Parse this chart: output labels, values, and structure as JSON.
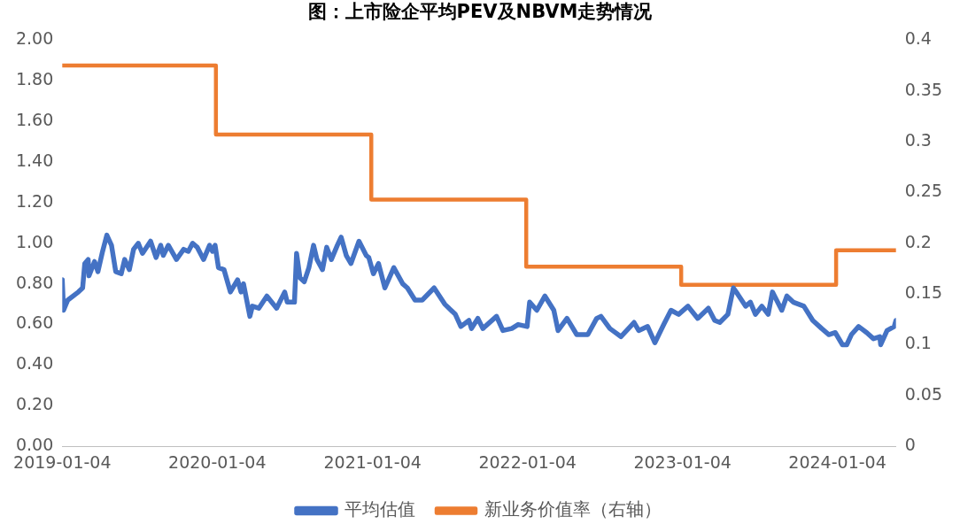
{
  "chart_data": {
    "type": "line",
    "title": "图：上市险企平均PEV及NBVM走势情况",
    "xlim": [
      "2019-01-04",
      "2024-05-21"
    ],
    "xticks": [
      "2019-01-04",
      "2020-01-04",
      "2021-01-04",
      "2022-01-04",
      "2023-01-04",
      "2024-01-04"
    ],
    "ylim": [
      0,
      2
    ],
    "yticks": [
      {
        "value": 0,
        "label": "0.00"
      },
      {
        "value": 0.2,
        "label": "0.20"
      },
      {
        "value": 0.4,
        "label": "0.40"
      },
      {
        "value": 0.6,
        "label": "0.60"
      },
      {
        "value": 0.8,
        "label": "0.80"
      },
      {
        "value": 1,
        "label": "1.00"
      },
      {
        "value": 1.2,
        "label": "1.20"
      },
      {
        "value": 1.4,
        "label": "1.40"
      },
      {
        "value": 1.6,
        "label": "1.60"
      },
      {
        "value": 1.8,
        "label": "1.80"
      },
      {
        "value": 2,
        "label": "2.00"
      }
    ],
    "y2lim": [
      0,
      0.4
    ],
    "y2ticks": [
      0,
      0.05,
      0.1,
      0.15,
      0.2,
      0.25,
      0.3,
      0.35,
      0.4
    ],
    "grid": false,
    "legend": "bottom",
    "marker": "none",
    "series": [
      {
        "name": "平均估值",
        "type": "line",
        "color": "#4472c4",
        "x": [
          "2019-01-04",
          "2019-01-07",
          "2019-01-17",
          "2019-02-11",
          "2019-02-21",
          "2019-02-26",
          "2019-03-06",
          "2019-03-08",
          "2019-03-21",
          "2019-03-29",
          "2019-04-09",
          "2019-04-19",
          "2019-04-30",
          "2019-05-10",
          "2019-05-23",
          "2019-05-31",
          "2019-06-11",
          "2019-06-21",
          "2019-07-02",
          "2019-07-12",
          "2019-07-31",
          "2019-08-13",
          "2019-08-24",
          "2019-08-30",
          "2019-09-11",
          "2019-09-30",
          "2019-10-17",
          "2019-10-28",
          "2019-11-07",
          "2019-11-18",
          "2019-12-03",
          "2019-12-17",
          "2019-12-24",
          "2019-12-30",
          "2020-01-07",
          "2020-01-20",
          "2020-02-04",
          "2020-02-21",
          "2020-02-29",
          "2020-03-06",
          "2020-03-21",
          "2020-03-27",
          "2020-04-11",
          "2020-04-30",
          "2020-05-23",
          "2020-06-11",
          "2020-06-17",
          "2020-07-04",
          "2020-07-09",
          "2020-07-17",
          "2020-07-27",
          "2020-08-07",
          "2020-08-18",
          "2020-08-26",
          "2020-09-08",
          "2020-09-18",
          "2020-09-29",
          "2020-10-13",
          "2020-10-22",
          "2020-11-03",
          "2020-11-14",
          "2020-12-03",
          "2020-12-20",
          "2020-12-26",
          "2021-01-06",
          "2021-01-18",
          "2021-02-02",
          "2021-02-23",
          "2021-03-16",
          "2021-03-27",
          "2021-04-14",
          "2021-05-01",
          "2021-05-29",
          "2021-06-23",
          "2021-07-18",
          "2021-07-31",
          "2021-08-19",
          "2021-08-25",
          "2021-09-09",
          "2021-09-21",
          "2021-09-26",
          "2021-10-23",
          "2021-11-07",
          "2021-11-28",
          "2021-12-13",
          "2022-01-03",
          "2022-01-09",
          "2022-01-26",
          "2022-02-14",
          "2022-03-07",
          "2022-03-17",
          "2022-04-07",
          "2022-04-30",
          "2022-05-26",
          "2022-06-16",
          "2022-06-26",
          "2022-07-17",
          "2022-08-12",
          "2022-09-12",
          "2022-09-23",
          "2022-10-14",
          "2022-10-31",
          "2022-11-21",
          "2022-12-08",
          "2022-12-26",
          "2023-01-17",
          "2023-02-09",
          "2023-03-06",
          "2023-03-21",
          "2023-04-02",
          "2023-04-21",
          "2023-05-04",
          "2023-05-14",
          "2023-06-02",
          "2023-06-13",
          "2023-06-25",
          "2023-07-10",
          "2023-07-25",
          "2023-08-04",
          "2023-08-26",
          "2023-09-07",
          "2023-09-22",
          "2023-10-17",
          "2023-11-07",
          "2023-11-28",
          "2023-12-15",
          "2023-12-30",
          "2024-01-16",
          "2024-01-26",
          "2024-02-06",
          "2024-02-23",
          "2024-03-13",
          "2024-03-29",
          "2024-04-13",
          "2024-04-15",
          "2024-04-30",
          "2024-05-17",
          "2024-05-21"
        ],
        "values": [
          0.82,
          0.67,
          0.72,
          0.76,
          0.78,
          0.9,
          0.92,
          0.84,
          0.91,
          0.86,
          0.96,
          1.04,
          0.99,
          0.86,
          0.85,
          0.92,
          0.87,
          0.97,
          1.0,
          0.95,
          1.01,
          0.93,
          0.99,
          0.94,
          0.99,
          0.92,
          0.97,
          0.96,
          1.0,
          0.98,
          0.92,
          0.99,
          0.96,
          0.99,
          0.88,
          0.87,
          0.76,
          0.82,
          0.76,
          0.8,
          0.64,
          0.69,
          0.68,
          0.74,
          0.68,
          0.76,
          0.71,
          0.71,
          0.95,
          0.83,
          0.81,
          0.88,
          0.99,
          0.92,
          0.87,
          0.98,
          0.92,
          0.99,
          1.03,
          0.94,
          0.9,
          1.01,
          0.94,
          0.93,
          0.85,
          0.9,
          0.78,
          0.88,
          0.8,
          0.78,
          0.72,
          0.72,
          0.78,
          0.7,
          0.65,
          0.59,
          0.62,
          0.58,
          0.63,
          0.58,
          0.59,
          0.64,
          0.57,
          0.58,
          0.6,
          0.59,
          0.71,
          0.67,
          0.74,
          0.67,
          0.57,
          0.63,
          0.55,
          0.55,
          0.63,
          0.64,
          0.58,
          0.54,
          0.61,
          0.57,
          0.59,
          0.51,
          0.6,
          0.67,
          0.65,
          0.69,
          0.63,
          0.68,
          0.62,
          0.61,
          0.65,
          0.78,
          0.75,
          0.69,
          0.71,
          0.65,
          0.69,
          0.65,
          0.76,
          0.67,
          0.74,
          0.71,
          0.69,
          0.62,
          0.58,
          0.55,
          0.56,
          0.5,
          0.5,
          0.55,
          0.59,
          0.56,
          0.53,
          0.54,
          0.5,
          0.57,
          0.59,
          0.62
        ]
      },
      {
        "name": "新业务价值率（右轴）",
        "type": "step",
        "axis": "y2",
        "color": "#ed7d31",
        "x": [
          "2019-01-04",
          "2020-01-01",
          "2021-01-01",
          "2022-01-01",
          "2023-01-01",
          "2024-01-01",
          "2024-05-21"
        ],
        "values": [
          0.375,
          0.307,
          0.243,
          0.177,
          0.159,
          0.193,
          0.193
        ]
      }
    ]
  }
}
